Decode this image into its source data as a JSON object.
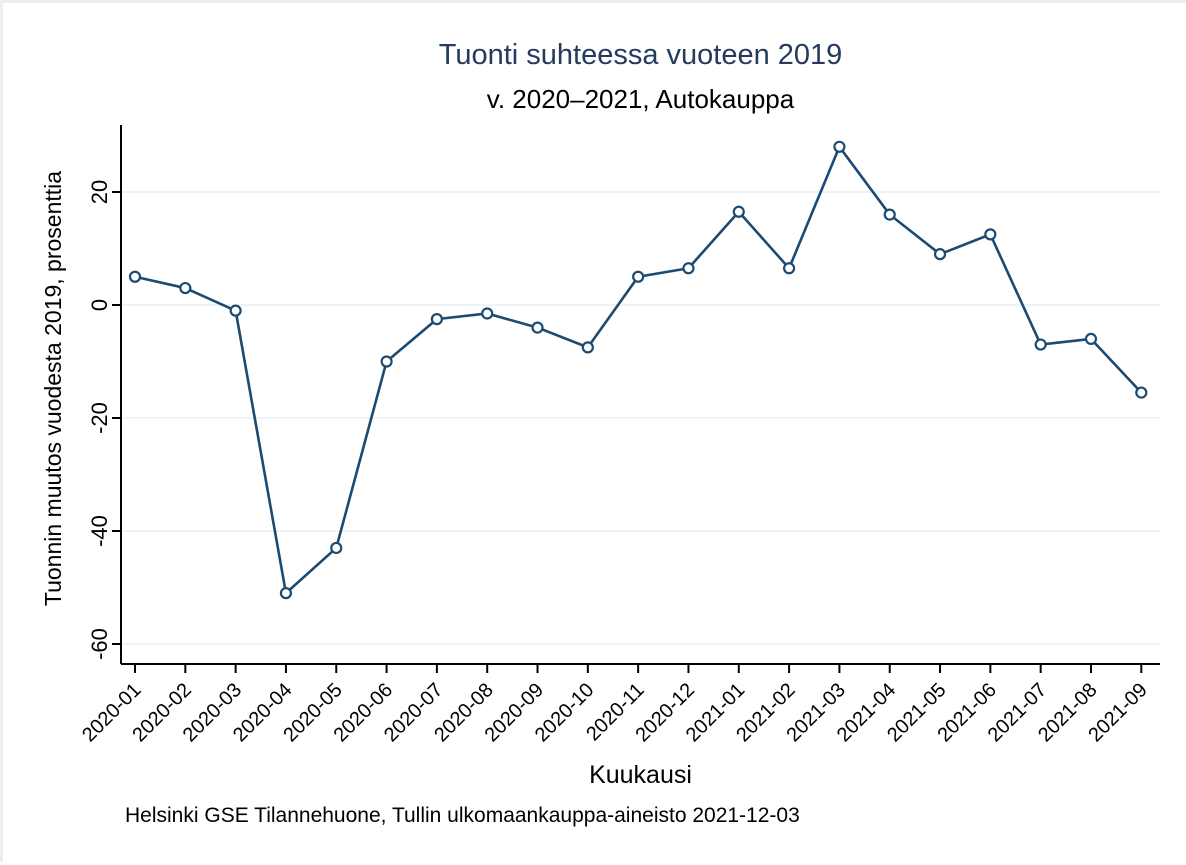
{
  "figure": {
    "title": "Tuonti suhteessa vuoteen 2019",
    "subtitle": "v. 2020–2021, Autokauppa",
    "footnote": "Helsinki GSE Tilannehuone, Tullin ulkomaankauppa-aineisto 2021-12-03"
  },
  "chart_data": {
    "type": "line",
    "title": "Tuonti suhteessa vuoteen 2019",
    "subtitle": "v. 2020–2021, Autokauppa",
    "xlabel": "Kuukausi",
    "ylabel": "Tuonnin muutos vuodesta 2019, prosenttia",
    "footnote": "Helsinki GSE Tilannehuone, Tullin ulkomaankauppa-aineisto 2021-12-03",
    "categories": [
      "2020-01",
      "2020-02",
      "2020-03",
      "2020-04",
      "2020-05",
      "2020-06",
      "2020-07",
      "2020-08",
      "2020-09",
      "2020-10",
      "2020-11",
      "2020-12",
      "2021-01",
      "2021-02",
      "2021-03",
      "2021-04",
      "2021-05",
      "2021-06",
      "2021-07",
      "2021-08",
      "2021-09"
    ],
    "series": [
      {
        "name": "Tuonti, Autokauppa",
        "values": [
          5,
          3,
          -1,
          -51,
          -43,
          -10,
          -2.5,
          -1.5,
          -4,
          -7.5,
          5,
          6.5,
          16.5,
          6.5,
          28,
          16,
          9,
          12.5,
          -7,
          -6,
          -15.5
        ]
      }
    ],
    "yticks": [
      20,
      0,
      -20,
      -40,
      -60
    ],
    "ylim": [
      -63,
      31
    ],
    "grid": true,
    "legend": "none",
    "marker": "hollow-circle",
    "colors": {
      "line": "#1b4a72",
      "marker_fill": "#ffffff",
      "gridline": "#e9f1f2",
      "axis": "#000000",
      "title": "#253a5f",
      "page_border": "#e8eef1"
    }
  }
}
